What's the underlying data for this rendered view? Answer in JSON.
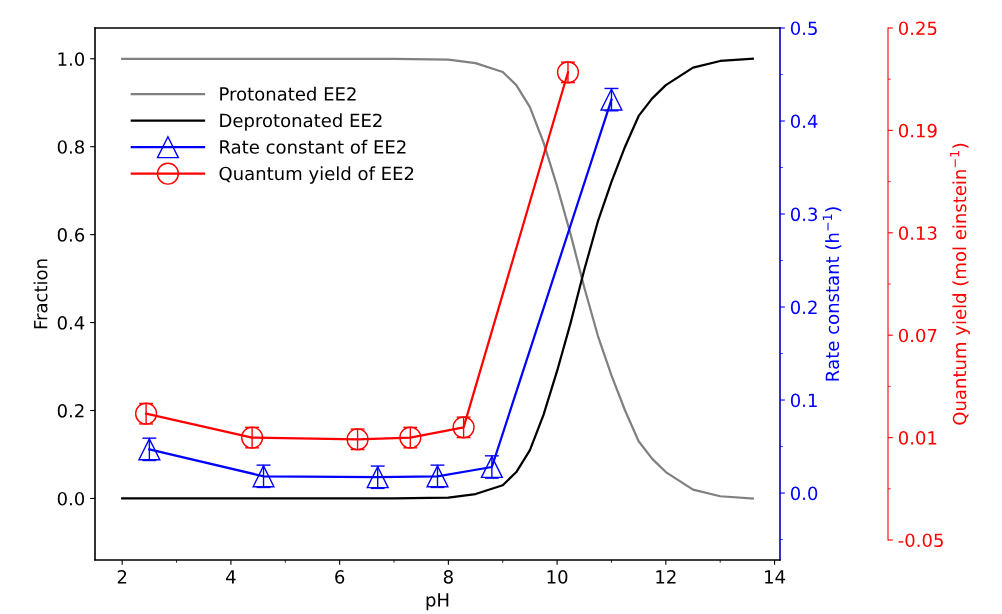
{
  "chart_data": {
    "type": "line",
    "xlabel": "pH",
    "ylabel": "Fraction",
    "y2label": "Rate constant (h$^{−1}$)",
    "y3label": "Quantum yield (mol einstein$^{−1}$)",
    "xlim": [
      1.5,
      14.1
    ],
    "xticks": [
      2,
      4,
      6,
      8,
      10,
      12,
      14
    ],
    "ylim": [
      -0.14,
      1.07
    ],
    "yticks": [
      {
        "value": 0,
        "label": "0.0"
      },
      0.2,
      0.4,
      0.6,
      0.8,
      {
        "value": 1,
        "label": "1.0"
      }
    ],
    "y2lim": [
      -0.072,
      0.5
    ],
    "y2ticks": [
      {
        "value": 0,
        "label": "0.0"
      },
      0.1,
      0.2,
      0.3,
      0.4,
      0.5
    ],
    "y3lim": [
      -0.05,
      0.25
    ],
    "y3ticks": [
      -0.05,
      0.01,
      0.07,
      0.13,
      0.19,
      0.25
    ],
    "legend": "top left",
    "grid": false,
    "series": [
      {
        "name": "Protonated EE2",
        "color": "#808080",
        "marker": "none",
        "x": [
          2.0,
          3,
          4,
          5,
          6,
          7,
          8,
          8.5,
          9,
          9.25,
          9.5,
          9.75,
          10,
          10.25,
          10.5,
          10.75,
          11,
          11.25,
          11.5,
          11.75,
          12,
          12.5,
          13,
          13.6
        ],
        "values": [
          1.0,
          1.0,
          1.0,
          1.0,
          1.0,
          1.0,
          0.998,
          0.99,
          0.97,
          0.94,
          0.89,
          0.81,
          0.71,
          0.6,
          0.48,
          0.37,
          0.28,
          0.2,
          0.13,
          0.09,
          0.06,
          0.02,
          0.005,
          0.0
        ]
      },
      {
        "name": "Deprotonated EE2",
        "color": "#000000",
        "marker": "none",
        "x": [
          2.0,
          3,
          4,
          5,
          6,
          7,
          8,
          8.5,
          9,
          9.25,
          9.5,
          9.75,
          10,
          10.25,
          10.5,
          10.75,
          11,
          11.25,
          11.5,
          11.75,
          12,
          12.5,
          13,
          13.6
        ],
        "values": [
          0.0,
          0.0,
          0.0,
          0.0,
          0.0,
          0.0,
          0.002,
          0.01,
          0.03,
          0.06,
          0.11,
          0.19,
          0.29,
          0.4,
          0.52,
          0.63,
          0.72,
          0.8,
          0.87,
          0.91,
          0.94,
          0.98,
          0.995,
          1.0
        ]
      },
      {
        "name": "Rate constant of EE2",
        "color": "#0000ff",
        "marker": "triangle",
        "axis": "y2",
        "x": [
          2.5,
          4.6,
          6.7,
          7.8,
          8.8,
          11.0
        ],
        "values": [
          0.047,
          0.018,
          0.017,
          0.018,
          0.028,
          0.423
        ],
        "errors": [
          0.012,
          0.012,
          0.012,
          0.012,
          0.012,
          0.012
        ]
      },
      {
        "name": "Quantum yield of EE2",
        "color": "#ff0000",
        "marker": "circle",
        "axis": "y3",
        "x": [
          2.44,
          4.39,
          6.33,
          7.3,
          8.28,
          10.2
        ],
        "values": [
          0.024,
          0.01,
          0.009,
          0.01,
          0.016,
          0.224
        ],
        "errors": [
          0.006,
          0.006,
          0.006,
          0.006,
          0.006,
          0.006
        ]
      }
    ]
  }
}
